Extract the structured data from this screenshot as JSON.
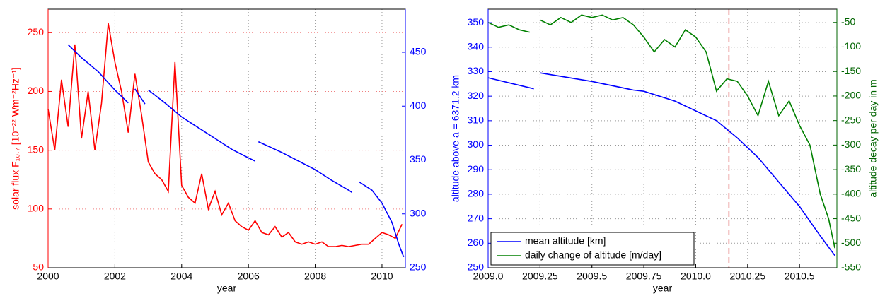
{
  "chart_data": [
    {
      "type": "line",
      "xlabel": "year",
      "ylabel": "solar flux F₁₀.₇ [10⁻²² Wm⁻²Hz⁻¹]",
      "ycolor": "#ff0000",
      "y2color": "#0000ff",
      "xlim": [
        2000,
        2010.7
      ],
      "xticks": [
        2000,
        2002,
        2004,
        2006,
        2008,
        2010
      ],
      "ylim": [
        50,
        270
      ],
      "yticks": [
        50,
        100,
        150,
        200,
        250
      ],
      "y2lim": [
        250,
        490
      ],
      "y2ticks": [
        250,
        300,
        350,
        400,
        450
      ],
      "grid": true,
      "series": [
        {
          "color": "#ff0000",
          "x": [
            2000.0,
            2000.2,
            2000.4,
            2000.6,
            2000.8,
            2001.0,
            2001.2,
            2001.4,
            2001.6,
            2001.8,
            2002.0,
            2002.2,
            2002.4,
            2002.6,
            2002.8,
            2003.0,
            2003.2,
            2003.4,
            2003.6,
            2003.8,
            2004.0,
            2004.2,
            2004.4,
            2004.6,
            2004.8,
            2005.0,
            2005.2,
            2005.4,
            2005.6,
            2005.8,
            2006.0,
            2006.2,
            2006.4,
            2006.6,
            2006.8,
            2007.0,
            2007.2,
            2007.4,
            2007.6,
            2007.8,
            2008.0,
            2008.2,
            2008.4,
            2008.6,
            2008.8,
            2009.0,
            2009.2,
            2009.4,
            2009.6,
            2009.8,
            2010.0,
            2010.2,
            2010.4,
            2010.6
          ],
          "values": [
            185,
            150,
            210,
            170,
            240,
            160,
            200,
            150,
            190,
            258,
            225,
            200,
            165,
            215,
            180,
            140,
            130,
            125,
            115,
            225,
            120,
            110,
            105,
            130,
            100,
            115,
            95,
            105,
            90,
            85,
            82,
            90,
            80,
            78,
            85,
            76,
            80,
            72,
            70,
            72,
            70,
            72,
            68,
            68,
            69,
            68,
            69,
            70,
            70,
            75,
            80,
            78,
            75,
            87
          ]
        },
        {
          "color": "#0000ff",
          "axis": "y2",
          "x": [
            2000.6,
            2001.0,
            2001.5,
            2002.0,
            2002.4,
            2002.5,
            2002.6,
            2002.9,
            2002.95,
            2003.0,
            2003.5,
            2004.0,
            2004.5,
            2005.0,
            2005.5,
            2006.0,
            2006.2,
            2006.25,
            2006.3,
            2007.0,
            2007.5,
            2008.0,
            2008.5,
            2009.0,
            2009.1,
            2009.2,
            2009.3,
            2009.7,
            2010.0,
            2010.3,
            2010.5,
            2010.65
          ],
          "values": [
            457,
            445,
            432,
            415,
            403,
            null,
            416,
            402,
            null,
            415,
            403,
            390,
            380,
            370,
            360,
            352,
            349,
            null,
            367,
            357,
            349,
            341,
            331,
            322,
            320,
            null,
            330,
            322,
            310,
            292,
            272,
            260
          ]
        }
      ]
    },
    {
      "type": "line",
      "xlabel": "year",
      "ylabel": "altitude above a = 6371.2 km",
      "y2label": "altitude decay per day in m",
      "ycolor": "#0000ff",
      "y2color": "#006400",
      "xlim": [
        2009,
        2010.68
      ],
      "xticks": [
        {
          "value": 2009,
          "label": "2009.0"
        },
        2009.25,
        2009.5,
        2009.75,
        {
          "value": 2010,
          "label": "2010.0"
        },
        2010.25,
        2010.5
      ],
      "ylim": [
        250,
        355.5
      ],
      "yticks": [
        250,
        260,
        270,
        280,
        290,
        300,
        310,
        320,
        330,
        340,
        350
      ],
      "y2lim": [
        -550,
        -23
      ],
      "y2ticks": [
        -550,
        -500,
        -450,
        -400,
        -350,
        -300,
        -250,
        -200,
        -150,
        -100,
        -50
      ],
      "grid": true,
      "legend": "lower left",
      "vline": {
        "x": 2010.16,
        "color": "#e06060"
      },
      "series": [
        {
          "name": "mean altitude [km]",
          "color": "#0000ff",
          "x": [
            2009.0,
            2009.22,
            2009.235,
            2009.25,
            2009.5,
            2009.7,
            2009.75,
            2009.9,
            2010.0,
            2010.1,
            2010.2,
            2010.3,
            2010.4,
            2010.5,
            2010.6,
            2010.67
          ],
          "values": [
            327.5,
            323,
            null,
            329.5,
            326,
            322.5,
            322,
            318,
            314,
            310,
            303,
            295,
            285,
            275,
            263,
            255
          ]
        },
        {
          "name": "daily change of altitude [m/day]",
          "color": "#008000",
          "axis": "y2",
          "x": [
            2009.0,
            2009.05,
            2009.1,
            2009.15,
            2009.2,
            2009.22,
            2009.25,
            2009.3,
            2009.35,
            2009.4,
            2009.45,
            2009.5,
            2009.55,
            2009.6,
            2009.65,
            2009.7,
            2009.75,
            2009.8,
            2009.85,
            2009.9,
            2009.95,
            2010.0,
            2010.05,
            2010.1,
            2010.15,
            2010.2,
            2010.25,
            2010.3,
            2010.35,
            2010.4,
            2010.45,
            2010.5,
            2010.55,
            2010.6,
            2010.64,
            2010.67
          ],
          "values": [
            -50,
            -60,
            -55,
            -65,
            -70,
            null,
            -45,
            -55,
            -40,
            -50,
            -35,
            -40,
            -35,
            -45,
            -40,
            -55,
            -80,
            -110,
            -85,
            -100,
            -65,
            -80,
            -110,
            -190,
            -165,
            -170,
            -200,
            -240,
            -170,
            -240,
            -210,
            -260,
            -300,
            -400,
            -450,
            -510
          ]
        }
      ]
    }
  ]
}
